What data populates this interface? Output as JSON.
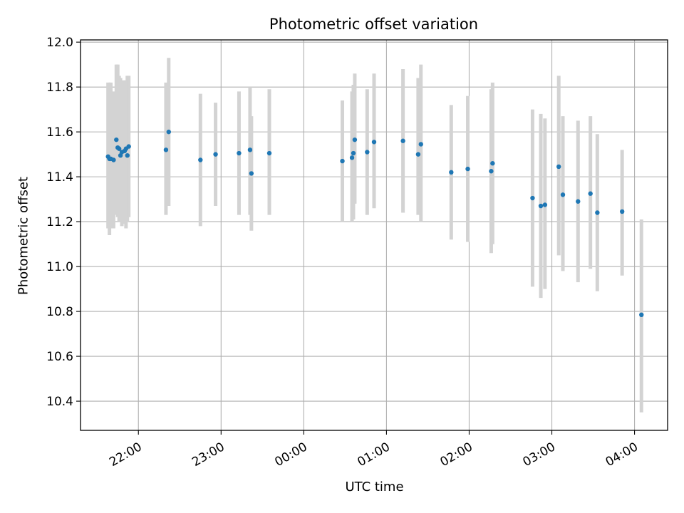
{
  "chart_data": {
    "type": "scatter",
    "title": "Photometric offset variation",
    "xlabel": "UTC time",
    "ylabel": "Photometric offset",
    "ylim": [
      10.27,
      12.01
    ],
    "xlim": [
      "21:18",
      "04:24"
    ],
    "x_ticks": [
      "22:00",
      "23:00",
      "00:00",
      "01:00",
      "02:00",
      "03:00",
      "04:00"
    ],
    "y_ticks": [
      10.4,
      10.6,
      10.8,
      11.0,
      11.2,
      11.4,
      11.6,
      11.8,
      12.0
    ],
    "y_tick_labels": [
      "10.4",
      "10.6",
      "10.8",
      "11.0",
      "11.2",
      "11.4",
      "11.6",
      "11.8",
      "12.0"
    ],
    "grid": true,
    "point_color": "#1f77b4",
    "errorbar_color": "#d3d3d3",
    "series": [
      {
        "x": [
          "21:38",
          "21:39",
          "21:40",
          "21:42",
          "21:44",
          "21:45",
          "21:46",
          "21:47",
          "21:48",
          "21:50",
          "21:51",
          "21:52",
          "21:53",
          "22:20",
          "22:22",
          "22:45",
          "22:56",
          "23:13",
          "23:21",
          "23:22",
          "23:35",
          "00:28",
          "00:35",
          "00:36",
          "00:37",
          "00:46",
          "00:51",
          "01:12",
          "01:23",
          "01:25",
          "01:47",
          "01:59",
          "02:16",
          "02:17",
          "02:46",
          "02:52",
          "02:55",
          "03:05",
          "03:08",
          "03:19",
          "03:28",
          "03:33",
          "03:51",
          "04:05"
        ],
        "y": [
          11.49,
          11.48,
          11.48,
          11.475,
          11.565,
          11.53,
          11.525,
          11.495,
          11.51,
          11.515,
          11.525,
          11.495,
          11.535,
          11.52,
          11.6,
          11.475,
          11.5,
          11.505,
          11.52,
          11.415,
          11.505,
          11.47,
          11.485,
          11.505,
          11.565,
          11.51,
          11.555,
          11.56,
          11.5,
          11.545,
          11.42,
          11.435,
          11.425,
          11.46,
          11.305,
          11.27,
          11.275,
          11.445,
          11.32,
          11.29,
          11.325,
          11.24,
          11.245,
          10.785
        ],
        "yerr_low": [
          11.17,
          11.14,
          11.17,
          11.17,
          11.23,
          11.22,
          11.2,
          11.2,
          11.18,
          11.19,
          11.17,
          11.2,
          11.22,
          11.23,
          11.27,
          11.18,
          11.27,
          11.23,
          11.23,
          11.16,
          11.23,
          11.2,
          11.2,
          11.21,
          11.28,
          11.23,
          11.26,
          11.24,
          11.23,
          11.2,
          11.12,
          11.11,
          11.06,
          11.1,
          10.91,
          10.86,
          10.9,
          11.05,
          10.98,
          10.93,
          10.99,
          10.89,
          10.96,
          10.35
        ],
        "yerr_high": [
          11.82,
          11.82,
          11.82,
          11.78,
          11.9,
          11.9,
          11.85,
          11.84,
          11.83,
          11.83,
          11.83,
          11.85,
          11.85,
          11.82,
          11.93,
          11.77,
          11.73,
          11.78,
          11.8,
          11.67,
          11.79,
          11.74,
          11.78,
          11.81,
          11.86,
          11.79,
          11.86,
          11.88,
          11.84,
          11.9,
          11.72,
          11.76,
          11.79,
          11.82,
          11.7,
          11.68,
          11.66,
          11.85,
          11.67,
          11.65,
          11.67,
          11.59,
          11.52,
          11.21
        ]
      }
    ]
  }
}
